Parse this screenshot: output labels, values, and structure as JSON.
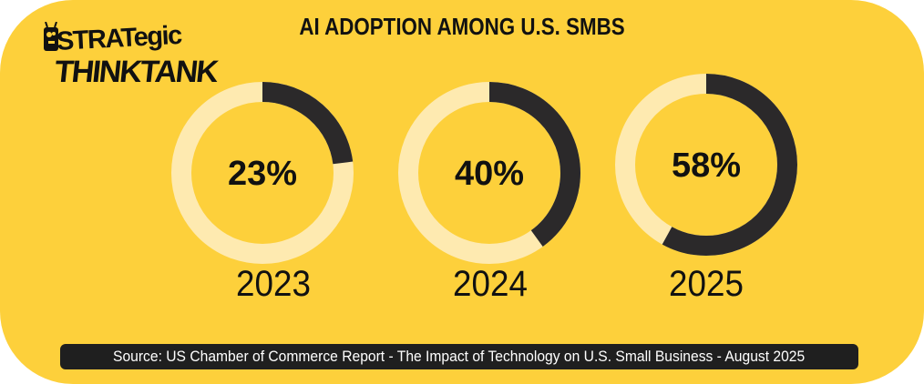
{
  "logo": {
    "line1": "STRATegic",
    "line2": "THINKTANK"
  },
  "colors": {
    "background": "#fdd03b",
    "ring_track": "#feeab0",
    "ring_fill": "#2b292a",
    "text": "#111111"
  },
  "chart_data": {
    "type": "donut",
    "title": "AI ADOPTION AMONG U.S. SMBS",
    "categories": [
      "2023",
      "2024",
      "2025"
    ],
    "values": [
      23,
      40,
      58
    ],
    "value_labels": [
      "23%",
      "40%",
      "58%"
    ],
    "unit": "%",
    "ylim": [
      0,
      100
    ]
  },
  "source": "Source: US Chamber of Commerce Report - The Impact of Technology on U.S. Small Business - August 2025"
}
